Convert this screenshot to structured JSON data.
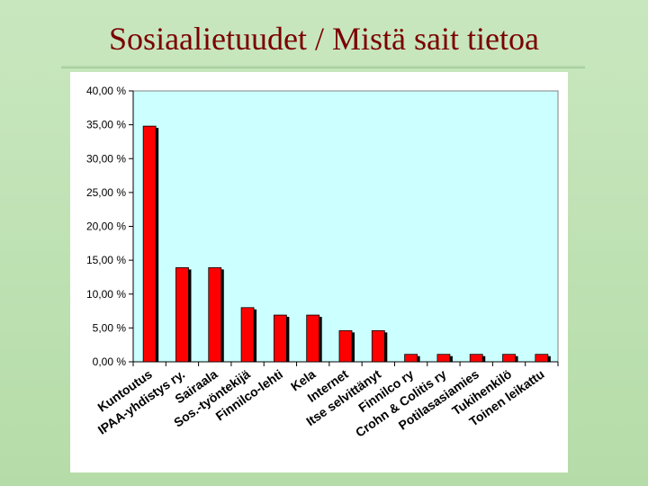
{
  "slide": {
    "title": "Sosiaalietuudet / Mistä sait tietoa"
  },
  "colors": {
    "bar": "#ff0000",
    "bar_shadow": "#000000",
    "plot_background": "#ccffff",
    "chart_background": "#ffffff"
  },
  "chart_data": {
    "type": "bar",
    "title": "",
    "xlabel": "",
    "ylabel": "",
    "ylim": [
      0,
      40
    ],
    "yticks": [
      0,
      5,
      10,
      15,
      20,
      25,
      30,
      35,
      40
    ],
    "ytick_labels": [
      "0,00 %",
      "5,00 %",
      "10,00 %",
      "15,00 %",
      "20,00 %",
      "25,00 %",
      "30,00 %",
      "35,00 %",
      "40,00 %"
    ],
    "grid": false,
    "legend": "none",
    "categories": [
      "Kuntoutus",
      "IPAA-yhdistys ry.",
      "Sairaala",
      "Sos.-työntekijä",
      "Finnilco-lehti",
      "Kela",
      "Internet",
      "Itse selvittänyt",
      "Finnilco ry",
      "Crohn & Colitis ry",
      "Potilasasiamies",
      "Tukihenkilö",
      "Toinen leikattu"
    ],
    "values": [
      34.8,
      13.9,
      13.9,
      8.0,
      6.9,
      6.9,
      4.6,
      4.6,
      1.1,
      1.1,
      1.1,
      1.1,
      1.1
    ]
  }
}
